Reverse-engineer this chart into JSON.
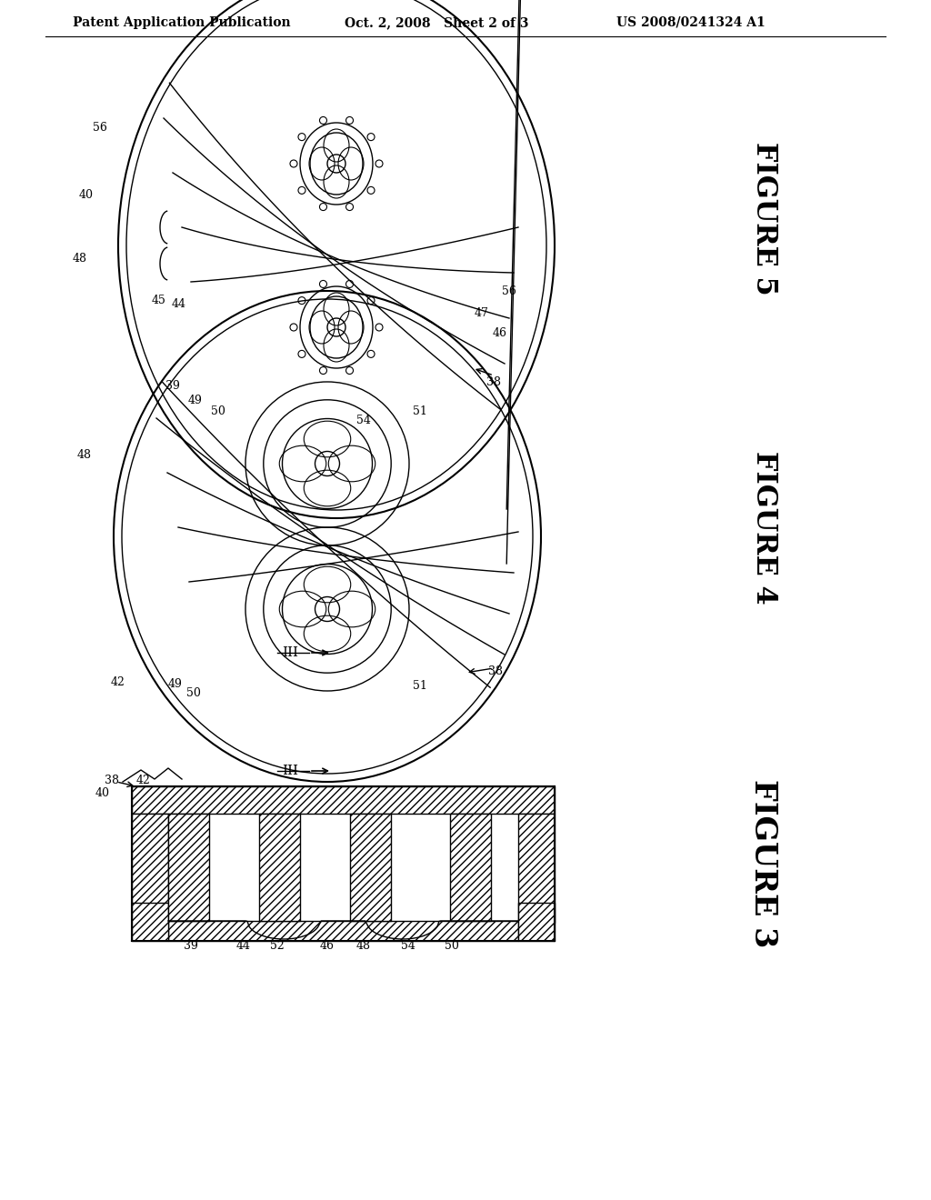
{
  "header_left": "Patent Application Publication",
  "header_mid": "Oct. 2, 2008   Sheet 2 of 3",
  "header_right": "US 2008/0241324 A1",
  "figure5_label": "FIGURE 5",
  "figure4_label": "FIGURE 4",
  "figure3_label": "FIGURE 3",
  "bg_color": "#ffffff",
  "line_color": "#000000"
}
